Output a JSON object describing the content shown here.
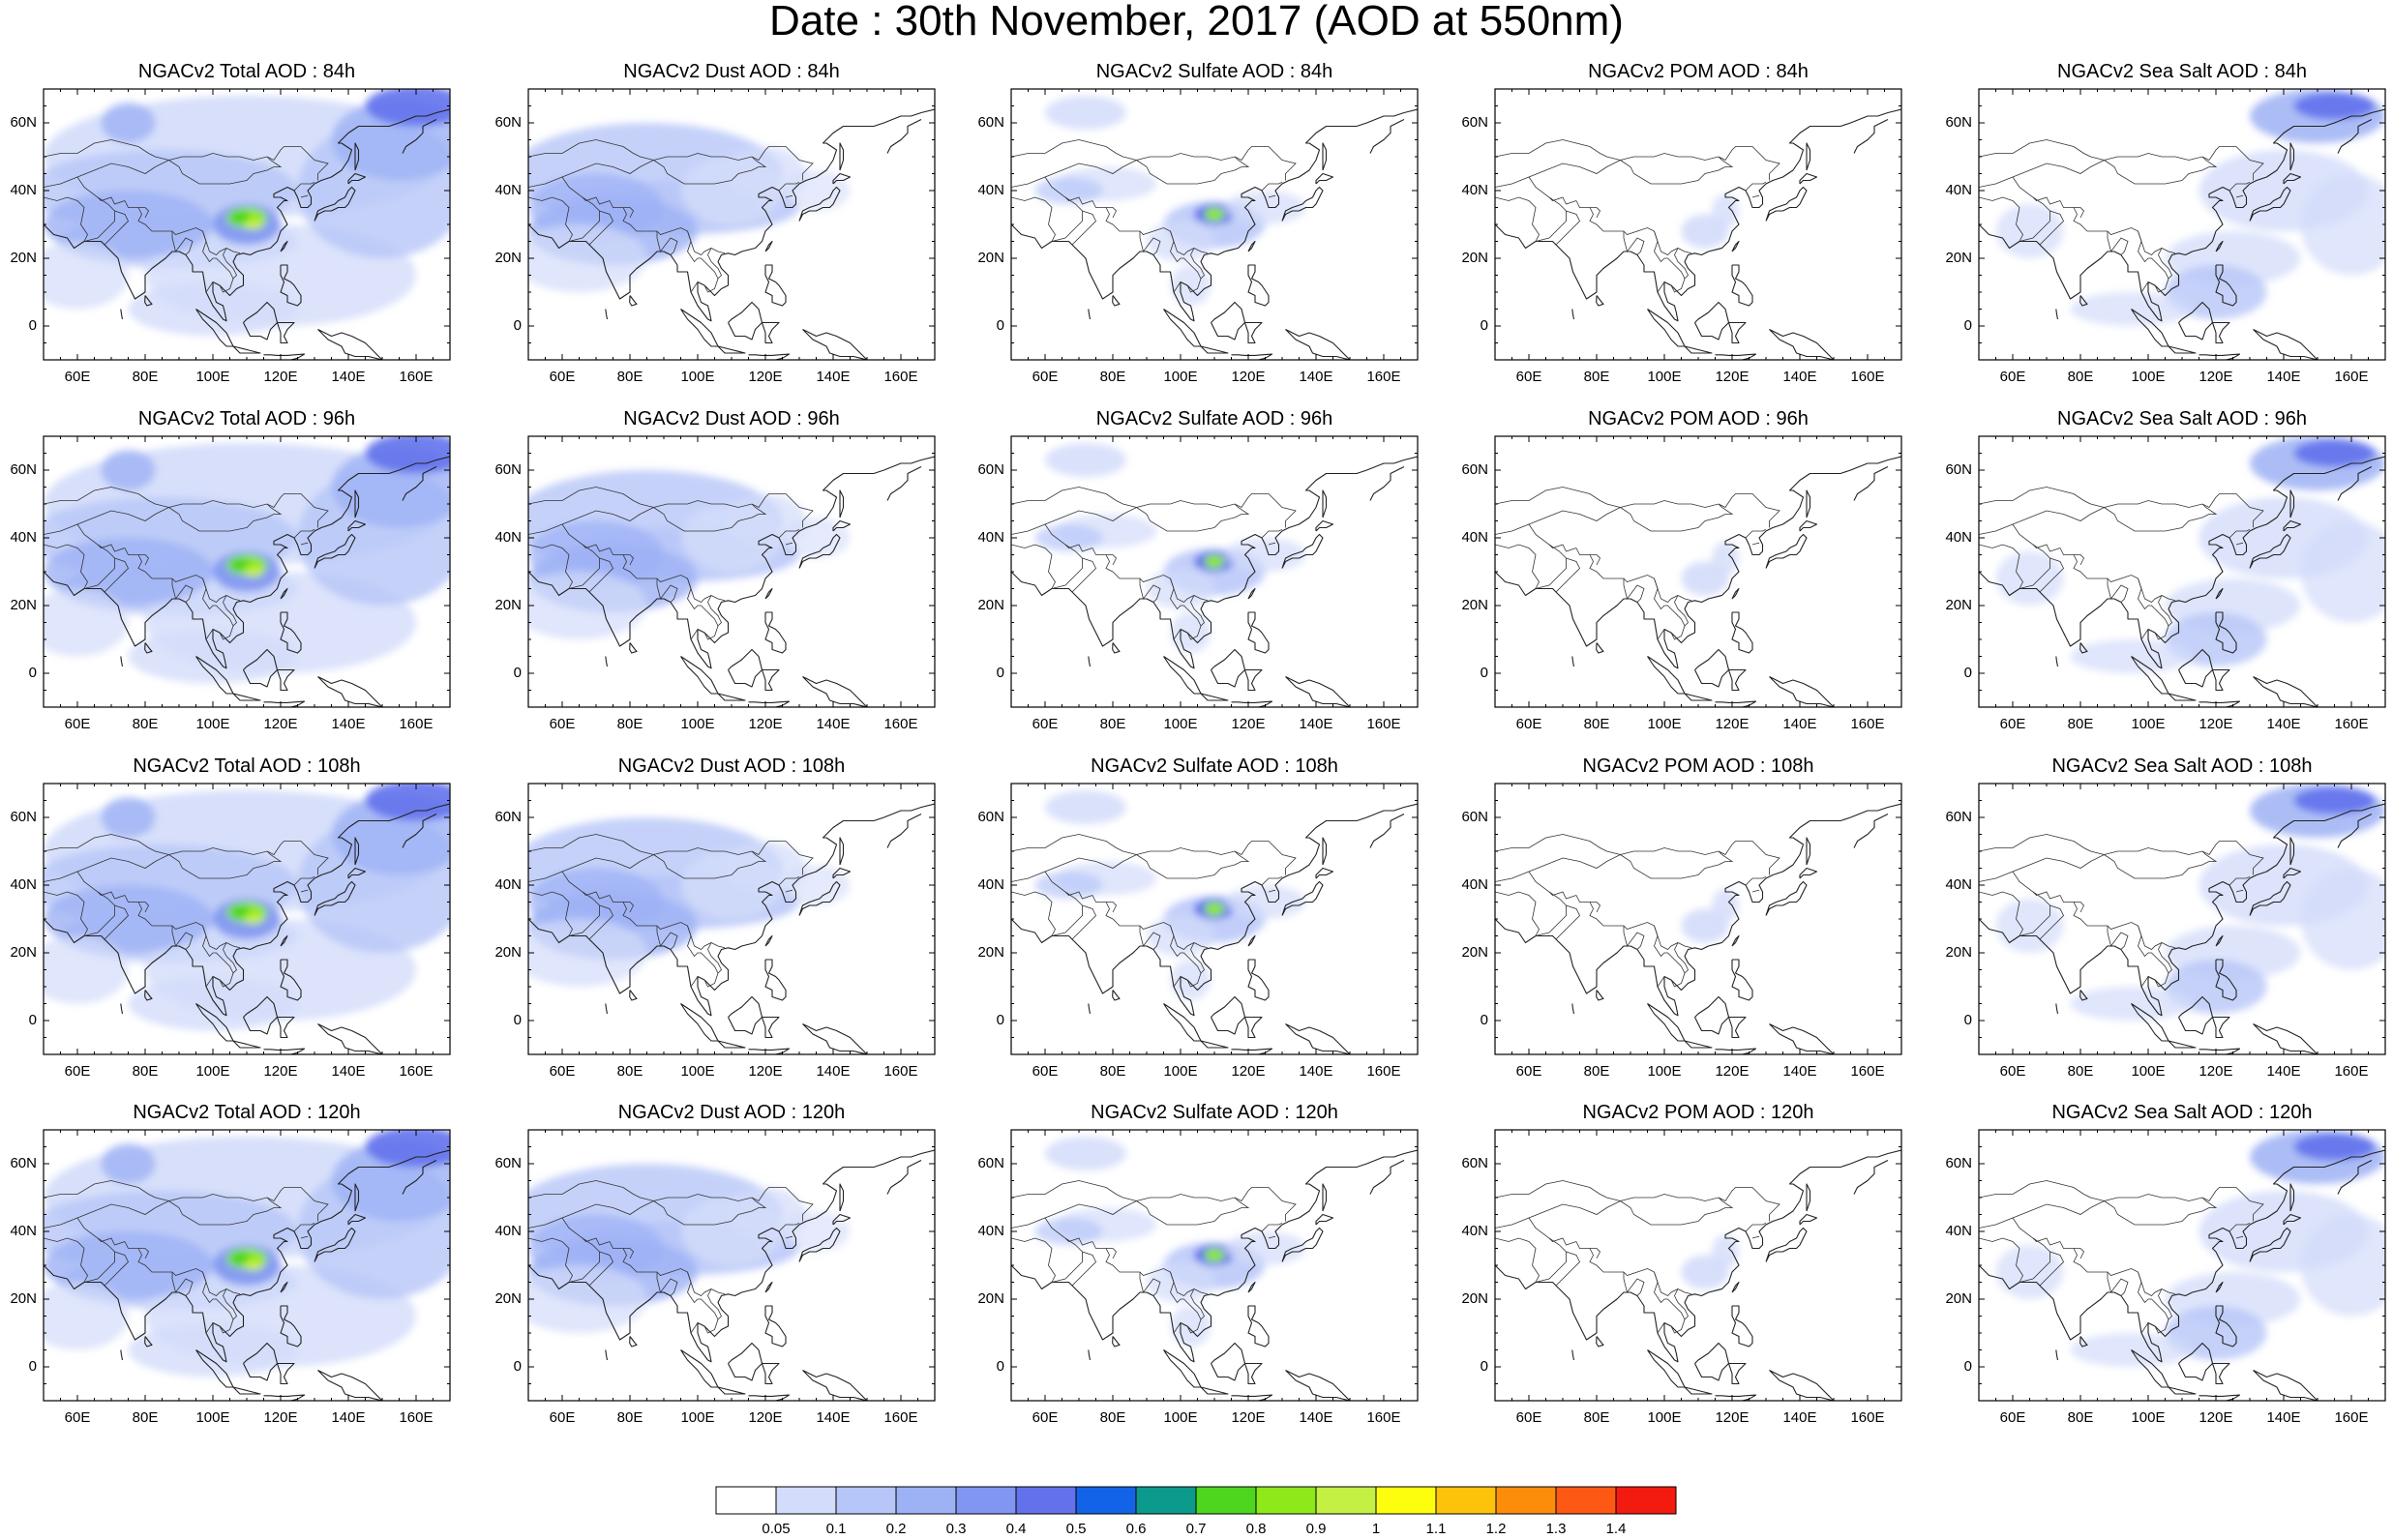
{
  "title": "Date : 30th November, 2017 (AOD at 550nm)",
  "map": {
    "lon_ticks": [
      "60E",
      "80E",
      "100E",
      "120E",
      "140E",
      "160E"
    ],
    "lat_ticks": [
      "60N",
      "40N",
      "20N",
      "0"
    ],
    "lon_range": [
      50,
      170
    ],
    "lat_range": [
      -10,
      70
    ]
  },
  "panels": [
    {
      "title": "NGACv2 Total AOD : 84h",
      "species": "total"
    },
    {
      "title": "NGACv2 Dust AOD : 84h",
      "species": "dust"
    },
    {
      "title": "NGACv2 Sulfate AOD : 84h",
      "species": "sulfate"
    },
    {
      "title": "NGACv2 POM AOD : 84h",
      "species": "pom"
    },
    {
      "title": "NGACv2 Sea Salt AOD : 84h",
      "species": "seasalt"
    },
    {
      "title": "NGACv2 Total AOD : 96h",
      "species": "total"
    },
    {
      "title": "NGACv2 Dust AOD : 96h",
      "species": "dust"
    },
    {
      "title": "NGACv2 Sulfate AOD : 96h",
      "species": "sulfate"
    },
    {
      "title": "NGACv2 POM AOD : 96h",
      "species": "pom"
    },
    {
      "title": "NGACv2 Sea Salt AOD : 96h",
      "species": "seasalt"
    },
    {
      "title": "NGACv2 Total AOD : 108h",
      "species": "total"
    },
    {
      "title": "NGACv2 Dust AOD : 108h",
      "species": "dust"
    },
    {
      "title": "NGACv2 Sulfate AOD : 108h",
      "species": "sulfate"
    },
    {
      "title": "NGACv2 POM AOD : 108h",
      "species": "pom"
    },
    {
      "title": "NGACv2 Sea Salt AOD : 108h",
      "species": "seasalt"
    },
    {
      "title": "NGACv2 Total AOD : 120h",
      "species": "total"
    },
    {
      "title": "NGACv2 Dust AOD : 120h",
      "species": "dust"
    },
    {
      "title": "NGACv2 Sulfate AOD : 120h",
      "species": "sulfate"
    },
    {
      "title": "NGACv2 POM AOD : 120h",
      "species": "pom"
    },
    {
      "title": "NGACv2 Sea Salt  AOD : 120h",
      "species": "seasalt"
    }
  ],
  "colorbar": {
    "labels": [
      "0.05",
      "0.1",
      "0.2",
      "0.3",
      "0.4",
      "0.5",
      "0.6",
      "0.7",
      "0.8",
      "0.9",
      "1",
      "1.1",
      "1.2",
      "1.3",
      "1.4"
    ],
    "colors": [
      "#ffffff",
      "#d3dcfa",
      "#b7c6f8",
      "#9db2f5",
      "#8096f0",
      "#6372ec",
      "#1363e8",
      "#0b9a8c",
      "#4ed51d",
      "#8ee81a",
      "#c3f043",
      "#fdfd0e",
      "#fdc20a",
      "#fd8c0a",
      "#fd5914",
      "#f31a10"
    ]
  }
}
